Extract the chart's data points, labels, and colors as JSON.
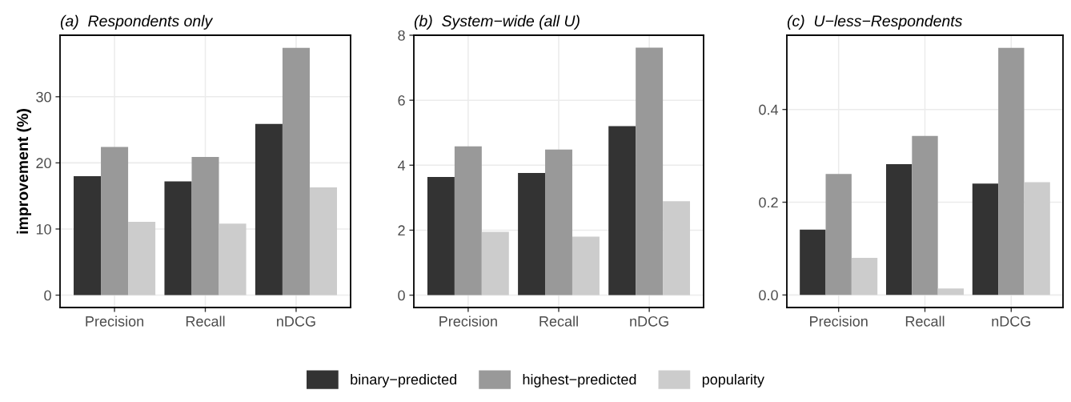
{
  "chart_data": [
    {
      "type": "bar",
      "title": "(a)  Respondents only",
      "ylabel": "improvement (%)",
      "categories": [
        "Precision",
        "Recall",
        "nDCG"
      ],
      "series": [
        {
          "name": "binary−predicted",
          "color": "#333333",
          "values": [
            18.0,
            17.2,
            25.9
          ]
        },
        {
          "name": "highest−predicted",
          "color": "#999999",
          "values": [
            22.4,
            20.9,
            37.4
          ]
        },
        {
          "name": "popularity",
          "color": "#cccccc",
          "values": [
            11.1,
            10.8,
            16.3
          ]
        }
      ],
      "ylim": [
        -1.87,
        39.3
      ],
      "yticks": [
        0,
        10,
        20,
        30
      ],
      "grid": true,
      "legend": "bottom"
    },
    {
      "type": "bar",
      "title": "(b)  System−wide (all U)",
      "categories": [
        "Precision",
        "Recall",
        "nDCG"
      ],
      "series": [
        {
          "color": "#333333",
          "values": [
            3.64,
            3.76,
            5.2
          ]
        },
        {
          "color": "#999999",
          "values": [
            4.58,
            4.48,
            7.62
          ]
        },
        {
          "color": "#cccccc",
          "values": [
            1.95,
            1.8,
            2.89
          ]
        }
      ],
      "ylim": [
        -0.38,
        8.0
      ],
      "yticks": [
        0,
        2,
        4,
        6,
        8
      ],
      "grid": true
    },
    {
      "type": "bar",
      "title": "(c)  U−less−Respondents",
      "categories": [
        "Precision",
        "Recall",
        "nDCG"
      ],
      "series": [
        {
          "color": "#333333",
          "values": [
            0.141,
            0.282,
            0.24
          ]
        },
        {
          "color": "#999999",
          "values": [
            0.261,
            0.343,
            0.533
          ]
        },
        {
          "color": "#cccccc",
          "values": [
            0.08,
            0.014,
            0.243
          ]
        }
      ],
      "ylim": [
        -0.027,
        0.56
      ],
      "yticks": [
        {
          "value": 0,
          "label": "0.0"
        },
        0.2,
        0.4
      ],
      "grid": true
    }
  ]
}
